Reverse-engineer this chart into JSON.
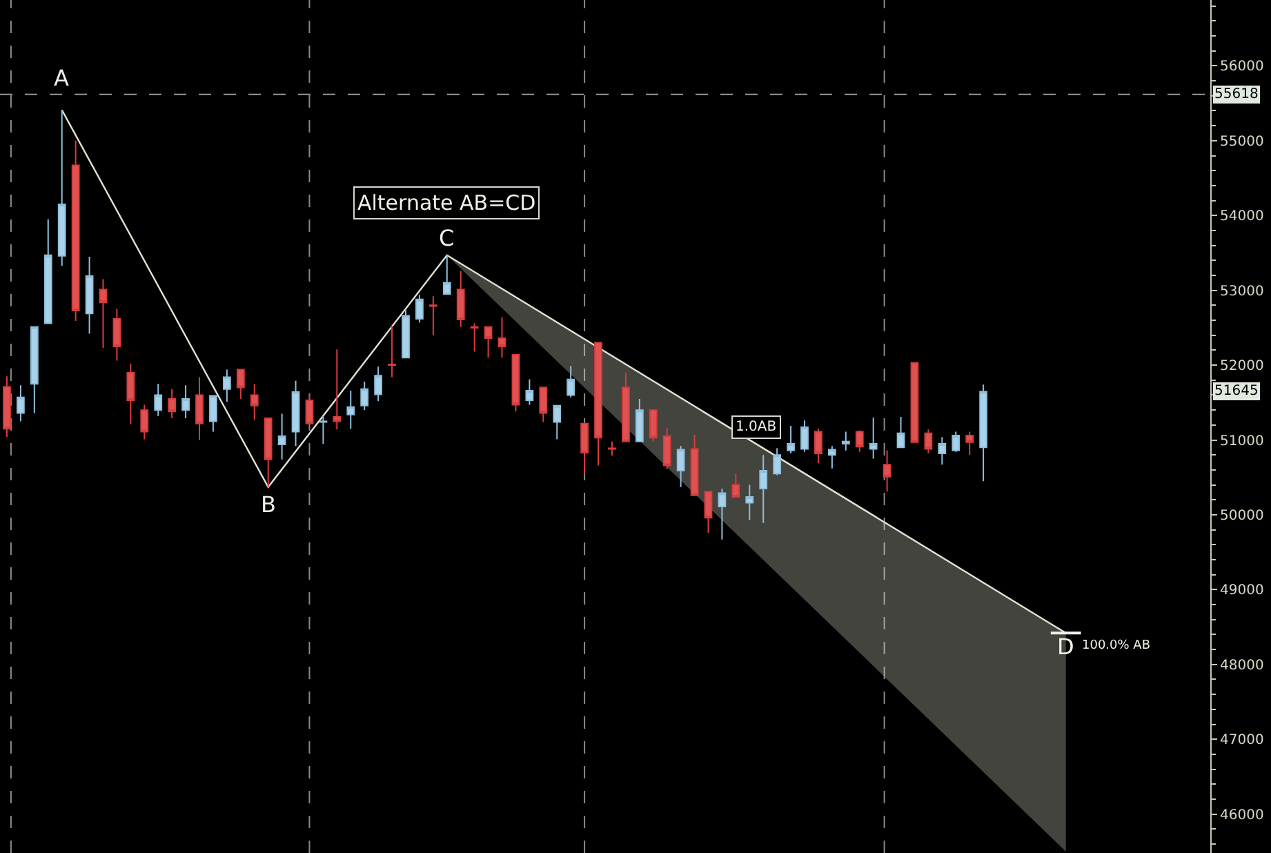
{
  "chart_data": {
    "type": "candlestick",
    "categories": [
      null,
      null,
      null,
      null,
      null,
      null,
      null,
      null,
      null,
      null,
      null,
      null,
      null,
      null,
      null,
      null,
      null,
      null,
      null,
      null,
      null,
      null,
      null,
      null,
      null,
      null,
      null,
      null,
      null,
      null,
      null,
      null,
      null,
      null,
      null,
      null,
      null,
      null,
      null,
      null,
      null,
      null,
      null,
      null,
      null,
      null,
      null,
      null,
      null,
      null,
      null,
      null,
      null,
      null,
      null,
      null,
      null,
      null,
      null,
      null,
      null,
      null,
      null,
      null,
      null,
      null,
      null,
      null,
      null,
      null,
      null,
      null,
      null,
      null,
      null,
      null,
      null,
      null,
      null,
      null,
      null,
      null,
      null,
      null,
      null,
      null,
      null,
      null
    ],
    "ohlc": [
      [
        51710,
        51850,
        51040,
        51150
      ],
      [
        51360,
        51730,
        51250,
        51570
      ],
      [
        51750,
        52510,
        51360,
        52510
      ],
      [
        52560,
        53950,
        52560,
        53470
      ],
      [
        53460,
        55410,
        53330,
        54150
      ],
      [
        54670,
        55000,
        52590,
        52730
      ],
      [
        52690,
        53450,
        52420,
        53190
      ],
      [
        53010,
        53150,
        52230,
        52840
      ],
      [
        52620,
        52750,
        52060,
        52250
      ],
      [
        51900,
        52020,
        51210,
        51530
      ],
      [
        51400,
        51470,
        51010,
        51110
      ],
      [
        51400,
        51750,
        51320,
        51600
      ],
      [
        51550,
        51680,
        51290,
        51380
      ],
      [
        51400,
        51730,
        51290,
        51550
      ],
      [
        51600,
        51840,
        51000,
        51220
      ],
      [
        51250,
        51590,
        51110,
        51590
      ],
      [
        51680,
        51940,
        51510,
        51840
      ],
      [
        51940,
        51940,
        51550,
        51700
      ],
      [
        51600,
        51750,
        51270,
        51460
      ],
      [
        51290,
        51290,
        50370,
        50740
      ],
      [
        50940,
        51350,
        50740,
        51050
      ],
      [
        51110,
        51790,
        50920,
        51640
      ],
      [
        51530,
        51600,
        51220,
        51220
      ],
      [
        51240,
        51320,
        50950,
        51250
      ],
      [
        51310,
        52210,
        51140,
        51250
      ],
      [
        51340,
        51660,
        51150,
        51440
      ],
      [
        51460,
        51780,
        51400,
        51680
      ],
      [
        51610,
        51980,
        51520,
        51860
      ],
      [
        52010,
        52520,
        51840,
        52000
      ],
      [
        52100,
        52750,
        52100,
        52660
      ],
      [
        52620,
        52940,
        52570,
        52880
      ],
      [
        52800,
        52920,
        52400,
        52790
      ],
      [
        52950,
        53470,
        52950,
        53100
      ],
      [
        53010,
        53260,
        52510,
        52610
      ],
      [
        52510,
        52560,
        52180,
        52500
      ],
      [
        52510,
        52510,
        52100,
        52360
      ],
      [
        52360,
        52640,
        52100,
        52250
      ],
      [
        52140,
        52140,
        51380,
        51470
      ],
      [
        51530,
        51810,
        51470,
        51660
      ],
      [
        51700,
        51700,
        51240,
        51360
      ],
      [
        51240,
        51460,
        51010,
        51460
      ],
      [
        51600,
        51990,
        51570,
        51810
      ],
      [
        51220,
        51220,
        50550,
        50830
      ],
      [
        52300,
        52300,
        50660,
        51030
      ],
      [
        50890,
        50980,
        50790,
        50880
      ],
      [
        51700,
        51900,
        50980,
        50980
      ],
      [
        50980,
        51550,
        50980,
        51400
      ],
      [
        51400,
        51400,
        50980,
        51030
      ],
      [
        51050,
        51160,
        50610,
        50660
      ],
      [
        50590,
        50920,
        50370,
        50870
      ],
      [
        50880,
        51070,
        50260,
        50260
      ],
      [
        50310,
        50310,
        49760,
        49960
      ],
      [
        50110,
        50350,
        49670,
        50290
      ],
      [
        50400,
        50550,
        50240,
        50240
      ],
      [
        50160,
        50400,
        49930,
        50240
      ],
      [
        50350,
        50800,
        49890,
        50590
      ],
      [
        50550,
        50890,
        50530,
        50800
      ],
      [
        50860,
        51190,
        50820,
        50950
      ],
      [
        50880,
        51260,
        50840,
        51170
      ],
      [
        51110,
        51150,
        50690,
        50820
      ],
      [
        50800,
        50920,
        50620,
        50870
      ],
      [
        50950,
        51110,
        50860,
        50980
      ],
      [
        51110,
        51130,
        50840,
        50910
      ],
      [
        50880,
        51300,
        50750,
        50950
      ],
      [
        50670,
        50860,
        50310,
        50510
      ],
      [
        50900,
        51310,
        50900,
        51090
      ],
      [
        52030,
        52030,
        50970,
        50970
      ],
      [
        51090,
        51140,
        50820,
        50880
      ],
      [
        50820,
        51040,
        50670,
        50950
      ],
      [
        50860,
        51110,
        50840,
        51060
      ],
      [
        51060,
        51110,
        50800,
        50970
      ],
      [
        50900,
        51740,
        50450,
        51645
      ],
      null,
      null,
      null,
      null,
      null,
      null,
      null,
      null,
      null,
      null,
      null,
      null,
      null,
      null,
      null,
      null
    ],
    "series": [
      {
        "type": "line",
        "color": "#e2e2d2",
        "values": [
          null,
          null,
          null,
          null,
          55410,
          null,
          null,
          null,
          null,
          null,
          null,
          null,
          null,
          null,
          null,
          null,
          null,
          null,
          null,
          50370,
          null,
          null,
          null,
          null,
          null,
          null,
          null,
          null,
          null,
          null,
          null,
          null,
          53470,
          null,
          null,
          null,
          null,
          null,
          null,
          null,
          null,
          null,
          null,
          null,
          null,
          null,
          null,
          null,
          null,
          null,
          null,
          null,
          null,
          null,
          null,
          null,
          null,
          null,
          null,
          null,
          null,
          null,
          null,
          null,
          null,
          null,
          null,
          null,
          null,
          null,
          null,
          null,
          null,
          null,
          null,
          null,
          null,
          48420,
          null,
          null,
          null,
          null,
          null,
          null,
          null,
          null,
          null,
          null
        ],
        "lower": [
          null,
          null,
          null,
          null,
          null,
          null,
          null,
          null,
          null,
          null,
          null,
          null,
          null,
          null,
          null,
          null,
          null,
          null,
          null,
          null,
          null,
          null,
          null,
          null,
          null,
          null,
          null,
          null,
          null,
          null,
          null,
          null,
          53470,
          null,
          null,
          null,
          null,
          null,
          null,
          null,
          null,
          null,
          null,
          null,
          null,
          null,
          null,
          null,
          null,
          null,
          null,
          null,
          null,
          null,
          null,
          null,
          null,
          null,
          null,
          null,
          null,
          null,
          null,
          null,
          null,
          null,
          null,
          null,
          null,
          null,
          null,
          null,
          null,
          null,
          null,
          null,
          null,
          45500,
          null,
          null,
          null,
          null,
          null,
          null,
          null,
          null,
          null,
          null
        ],
        "upper": [
          null,
          null,
          null,
          null,
          null,
          null,
          null,
          null,
          null,
          null,
          null,
          null,
          null,
          null,
          null,
          null,
          null,
          null,
          null,
          null,
          null,
          null,
          null,
          null,
          null,
          null,
          null,
          null,
          null,
          null,
          null,
          null,
          53470,
          null,
          null,
          null,
          null,
          null,
          null,
          null,
          null,
          null,
          null,
          null,
          null,
          null,
          null,
          null,
          null,
          null,
          null,
          null,
          null,
          null,
          null,
          null,
          null,
          null,
          null,
          null,
          null,
          null,
          null,
          null,
          null,
          null,
          null,
          null,
          null,
          null,
          null,
          null,
          null,
          null,
          null,
          null,
          null,
          48420,
          null,
          null,
          null,
          null,
          null,
          null,
          null,
          null,
          null,
          null
        ]
      }
    ],
    "ylim": [
      45480,
      56880
    ],
    "yticks": [
      46000,
      47000,
      48000,
      49000,
      50000,
      51000,
      52000,
      53000,
      54000,
      55000,
      56000
    ],
    "ref_lines": [
      {
        "axis": "y",
        "value": 55618,
        "label": "55618",
        "color": "#9a9a9a",
        "line_style": "dashed"
      }
    ],
    "annotations": [
      "A",
      "B",
      "C",
      "D",
      "Alternate AB=CD",
      "1.0AB",
      "100.0% AB",
      {
        "text": "51645",
        "y": 51645
      }
    ],
    "grid": false,
    "marker": "none"
  }
}
